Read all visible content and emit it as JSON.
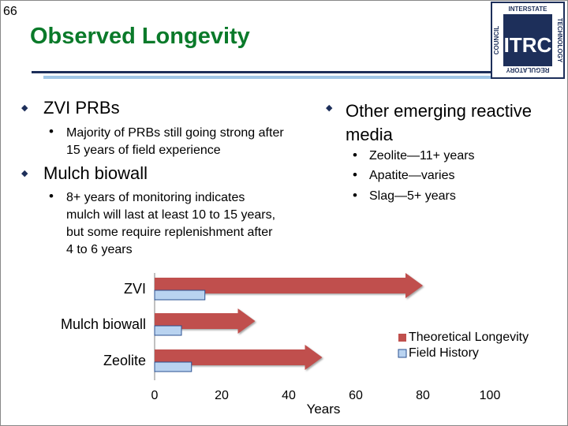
{
  "slide_number": "66",
  "title": "Observed Longevity",
  "logo": {
    "center": "ITRC",
    "top_text": "INTERSTATE",
    "right_text": "TECHNOLOGY",
    "bottom_text": "REGULATORY",
    "left_text": "COUNCIL"
  },
  "left_bullets": [
    {
      "text": "ZVI PRBs",
      "sub": [
        "Majority of PRBs still going strong after 15 years of field experience"
      ]
    },
    {
      "text": "Mulch biowall",
      "sub": [
        "8+ years of monitoring indicates mulch will last at least 10 to 15 years, but some require replenishment after 4 to 6 years"
      ]
    }
  ],
  "right_bullets": [
    {
      "text": "Other emerging reactive media",
      "sub": [
        "Zeolite—11+ years",
        "Apatite—varies",
        "Slag—5+ years"
      ]
    }
  ],
  "colors": {
    "theoretical": "#c0504d",
    "field": "#b9d3f0",
    "title": "#0a7a2a",
    "bullet": "#1d2f5a"
  },
  "chart_data": {
    "type": "bar",
    "orientation": "horizontal",
    "categories": [
      "ZVI",
      "Mulch biowall",
      "Zeolite"
    ],
    "series": [
      {
        "name": "Theoretical Longevity",
        "values": [
          80,
          30,
          50
        ]
      },
      {
        "name": "Field History",
        "values": [
          15,
          8,
          11
        ]
      }
    ],
    "xlabel": "Years",
    "xlim": [
      0,
      100
    ],
    "xticks": [
      "0",
      "20",
      "40",
      "60",
      "80",
      "100"
    ],
    "legend_position": "right"
  }
}
